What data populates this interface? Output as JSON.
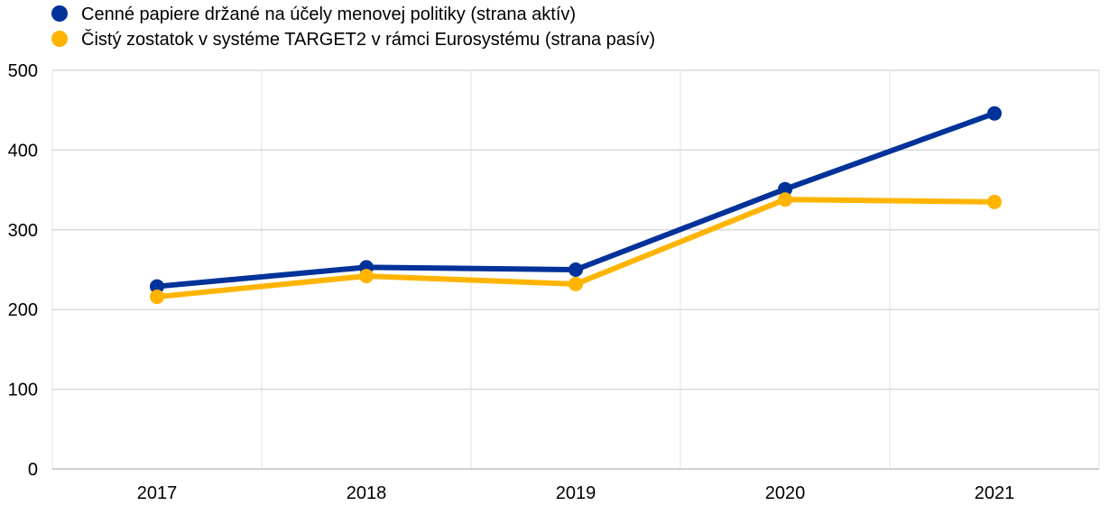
{
  "chart_data": {
    "type": "line",
    "categories": [
      "2017",
      "2018",
      "2019",
      "2020",
      "2021"
    ],
    "series": [
      {
        "name": "Cenné papiere držané na účely menovej politiky (strana aktív)",
        "color": "#003299",
        "values": [
          229,
          253,
          250,
          351,
          446
        ]
      },
      {
        "name": "Čistý zostatok v systéme TARGET2 v rámci Eurosystému (strana pasív)",
        "color": "#FFB400",
        "values": [
          216,
          242,
          232,
          338,
          335
        ]
      }
    ],
    "ylim": [
      0,
      500
    ],
    "yticks": [
      "0",
      "100",
      "200",
      "300",
      "400",
      "500"
    ],
    "grid": true,
    "legend": "top-left",
    "title": "",
    "xlabel": "",
    "ylabel": ""
  }
}
